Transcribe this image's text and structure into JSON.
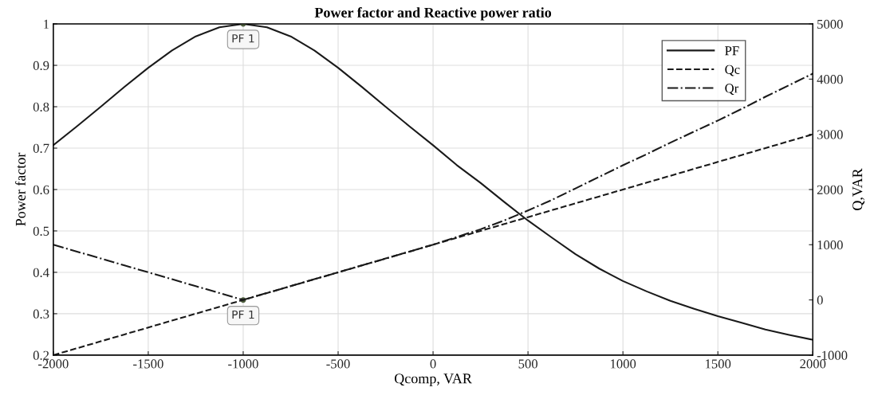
{
  "chart_data": {
    "type": "line",
    "title": "Power factor and Reactive power ratio",
    "xlabel": "Qcomp, VAR",
    "ylabel": "Power factor",
    "y2label": "Q,VAR",
    "x": [
      -2000,
      -1875,
      -1750,
      -1625,
      -1500,
      -1375,
      -1250,
      -1125,
      -1000,
      -875,
      -750,
      -625,
      -500,
      -375,
      -250,
      -125,
      0,
      125,
      250,
      375,
      500,
      625,
      750,
      875,
      1000,
      1125,
      1250,
      1375,
      1500,
      1625,
      1750,
      1875,
      2000
    ],
    "series": [
      {
        "name": "PF",
        "color": "#1a1a1a",
        "line_style": "solid",
        "values": [
          0.707,
          0.753,
          0.8,
          0.848,
          0.894,
          0.936,
          0.97,
          0.992,
          1,
          0.992,
          0.97,
          0.936,
          0.894,
          0.848,
          0.8,
          0.753,
          0.707,
          0.659,
          0.616,
          0.57,
          0.525,
          0.484,
          0.444,
          0.409,
          0.379,
          0.354,
          0.331,
          0.312,
          0.294,
          0.278,
          0.262,
          0.249,
          0.237
        ]
      },
      {
        "name": "Qc",
        "color": "#1a1a1a",
        "line_style": "dashed",
        "axis": "y2",
        "values": [
          -1000,
          -875,
          -750,
          -625,
          -500,
          -375,
          -250,
          -125,
          0,
          125,
          250,
          375,
          500,
          625,
          750,
          875,
          1000,
          1125,
          1250,
          1375,
          1500,
          1625,
          1750,
          1875,
          2000,
          2125,
          2250,
          2375,
          2500,
          2625,
          2750,
          2875,
          3000
        ]
      },
      {
        "name": "Qr",
        "color": "#1a1a1a",
        "line_style": "dashdot",
        "axis": "y2",
        "values": [
          1000,
          875,
          750,
          625,
          500,
          375,
          250,
          125,
          0,
          125,
          250,
          375,
          500,
          625,
          750,
          875,
          1000,
          1140,
          1280,
          1440,
          1620,
          1810,
          2020,
          2230,
          2440,
          2640,
          2850,
          3050,
          3250,
          3460,
          3680,
          3890,
          4100
        ]
      }
    ],
    "xlim": [
      -2000,
      2000
    ],
    "xticks": [
      -2000,
      -1500,
      -1000,
      -500,
      0,
      500,
      1000,
      1500,
      2000
    ],
    "ylim": [
      0.2,
      1
    ],
    "yticks": [
      0.2,
      0.3,
      0.4,
      0.5,
      0.6,
      0.7,
      0.8,
      0.9,
      1
    ],
    "y2lim": [
      -1000,
      5000
    ],
    "y2ticks": [
      -1000,
      0,
      1000,
      2000,
      3000,
      4000,
      5000
    ],
    "annotations": [
      {
        "text": "PF 1",
        "x": -1000,
        "y": 1
      },
      {
        "text": "PF 1",
        "x": -1000,
        "y": 0.333
      }
    ],
    "grid": true,
    "legend": "top right",
    "marker": "none"
  }
}
